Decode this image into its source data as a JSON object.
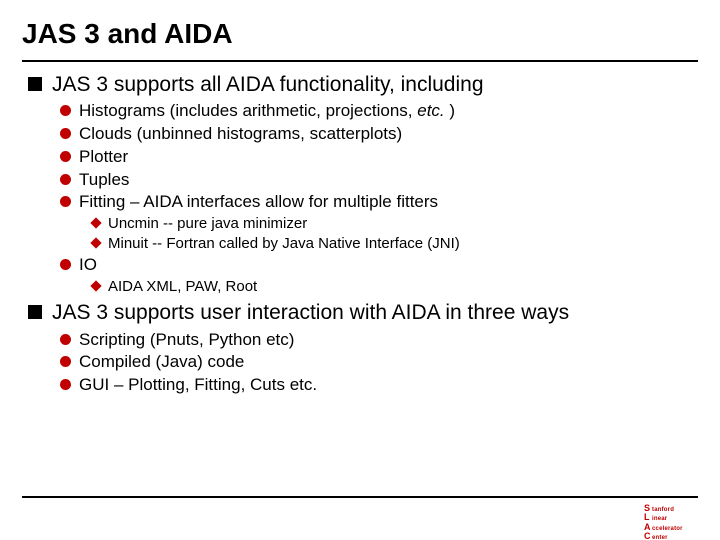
{
  "title": "JAS 3 and AIDA",
  "colors": {
    "accent": "#c00000",
    "text": "#000000",
    "rule": "#000000",
    "background": "#ffffff"
  },
  "typography": {
    "title_fontsize": 28,
    "l1_fontsize": 21,
    "l2_fontsize": 17,
    "l3_fontsize": 15,
    "font_family": "Arial"
  },
  "bullets": {
    "l1_shape": "square",
    "l1_color": "#000000",
    "l2_shape": "circle",
    "l2_color": "#c00000",
    "l3_shape": "diamond",
    "l3_color": "#c00000"
  },
  "sections": [
    {
      "text": "JAS 3 supports all AIDA functionality, including",
      "items": [
        {
          "text_html": "Histograms (includes arithmetic, projections, <span class=\"italic\">etc.</span> )"
        },
        {
          "text": "Clouds (unbinned histograms, scatterplots)"
        },
        {
          "text": "Plotter"
        },
        {
          "text": "Tuples"
        },
        {
          "text": "Fitting – AIDA interfaces allow for multiple fitters",
          "sub": [
            {
              "text": "Uncmin -- pure java minimizer"
            },
            {
              "text": "Minuit -- Fortran called by Java Native Interface (JNI)"
            }
          ]
        },
        {
          "text": "IO",
          "sub": [
            {
              "text": "AIDA XML, PAW, Root"
            }
          ]
        }
      ]
    },
    {
      "text": "JAS 3 supports user interaction with AIDA in three ways",
      "items": [
        {
          "text": "Scripting (Pnuts, Python etc)"
        },
        {
          "text": "Compiled (Java) code"
        },
        {
          "text": "GUI – Plotting, Fitting, Cuts etc."
        }
      ]
    }
  ],
  "logo": {
    "line1": "Stanford",
    "line2": "Linear",
    "line3": "Accelerator",
    "line4": "Center"
  }
}
